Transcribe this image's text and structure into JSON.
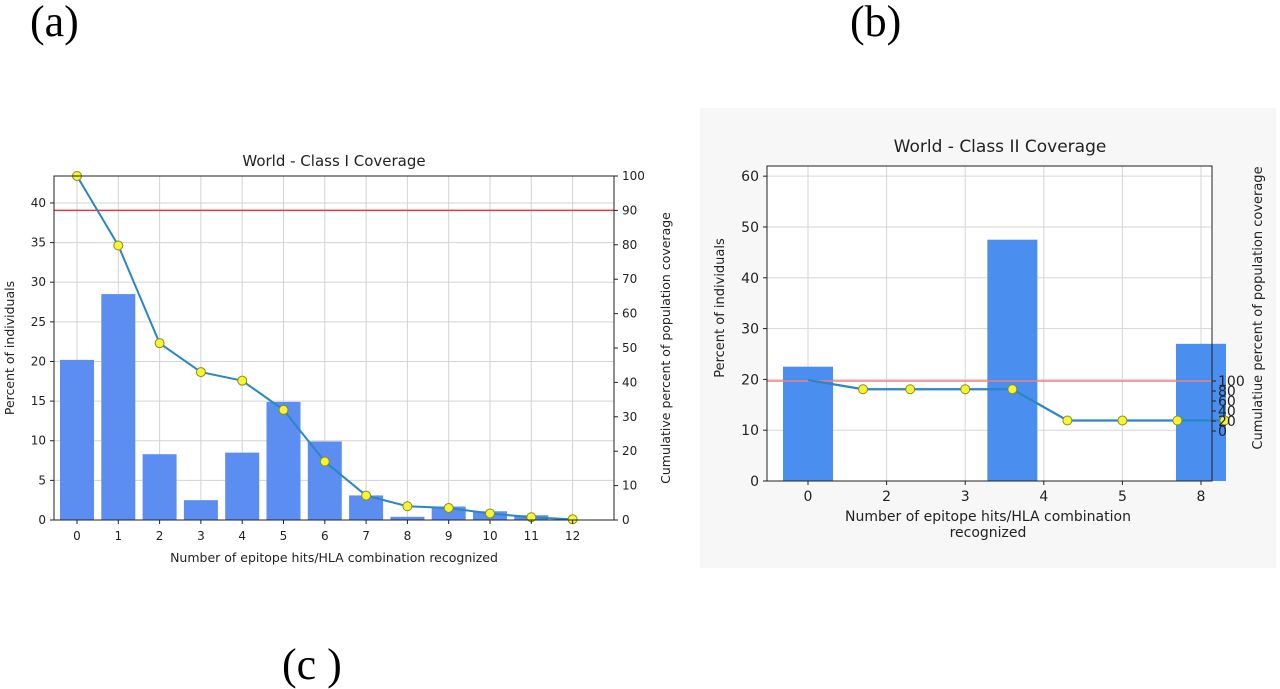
{
  "panel_labels": {
    "a": "(a)",
    "b": "(b)",
    "c": "(c )"
  },
  "chart_data": [
    {
      "type": "bar",
      "title": "World - Class I Coverage",
      "xlabel": "Number of epitope hits/HLA combination recognized",
      "ylabel": "Percent of individuals",
      "y2label": "Cumulative percent of population coverage",
      "categories": [
        "0",
        "1",
        "2",
        "3",
        "4",
        "5",
        "6",
        "7",
        "8",
        "9",
        "10",
        "11",
        "12"
      ],
      "ylim": [
        0,
        43.4
      ],
      "yticks": [
        0,
        5,
        10,
        15,
        20,
        25,
        30,
        35,
        40
      ],
      "y2lim": [
        0,
        100
      ],
      "y2ticks": [
        0,
        10,
        20,
        30,
        40,
        50,
        60,
        70,
        80,
        90,
        100
      ],
      "grid": true,
      "bar_color": "#5b8ef0",
      "series": [
        {
          "values": [
            20.2,
            28.5,
            8.3,
            2.5,
            8.5,
            14.9,
            9.9,
            3.1,
            0.4,
            1.7,
            1.1,
            0.6,
            0.0
          ],
          "axis": "left"
        },
        {
          "values": [
            100.0,
            79.8,
            51.4,
            43.0,
            40.5,
            32.0,
            17.0,
            7.1,
            4.0,
            3.5,
            1.9,
            0.8,
            0.2
          ],
          "axis": "right",
          "type": "line",
          "color": "#2b86c4",
          "marker_color": "#f5f534"
        }
      ],
      "hline": {
        "value": 90,
        "axis": "right",
        "color": "#e33b3b"
      }
    },
    {
      "type": "bar",
      "title": "World - Class II Coverage",
      "xlabel": "Number of epitope hits/HLA combination recognized",
      "ylabel": "Percent of individuals",
      "y2label": "Cumulatiue percent of population coverage",
      "categories": [
        "0",
        "2",
        "3",
        "4",
        "5",
        "8"
      ],
      "ylim": [
        0,
        62
      ],
      "yticks": [
        0,
        10,
        20,
        30,
        40,
        50,
        60
      ],
      "y2ticks": [
        0,
        20,
        40,
        60,
        80,
        100
      ],
      "grid": true,
      "bar_color": "#4a8ef0",
      "series": [
        {
          "x": [
            0,
            2.6,
            5
          ],
          "values": [
            22.5,
            47.5,
            27.0
          ],
          "axis": "left"
        },
        {
          "x": [
            0,
            0.7,
            1.3,
            2,
            2.6,
            3.3,
            4,
            4.7,
            5.3
          ],
          "values": [
            102,
            83.5,
            83.5,
            83.5,
            83.5,
            21.0,
            21.0,
            21.0,
            21.0
          ],
          "axis": "right",
          "type": "line",
          "color": "#2b86c4",
          "marker_color": "#f5f534"
        }
      ],
      "hline": {
        "value": 100,
        "axis": "right",
        "color": "#f08080"
      }
    }
  ]
}
